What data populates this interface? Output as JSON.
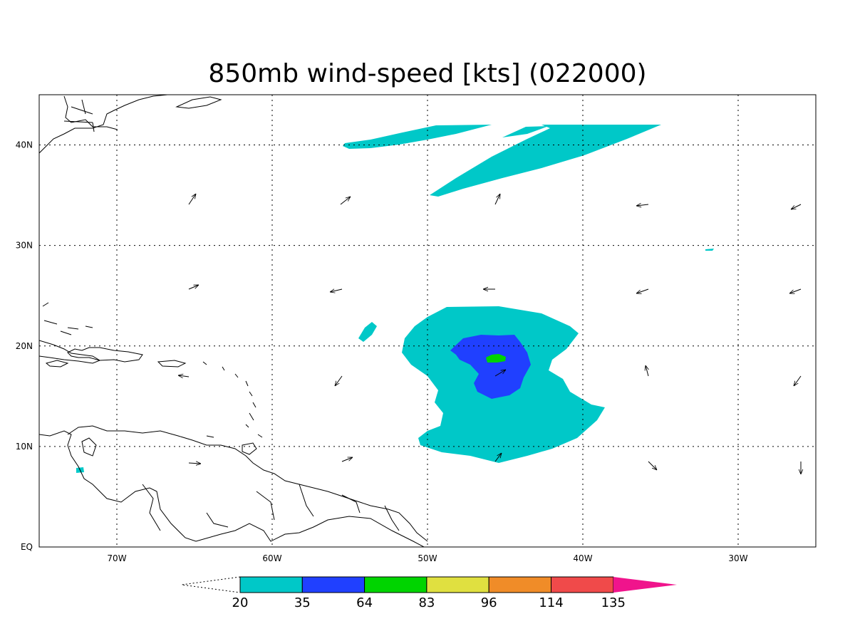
{
  "title": "850mb wind-speed [kts] (022000)",
  "map": {
    "lon_range": [
      -75,
      -25
    ],
    "lat_range": [
      0,
      45
    ],
    "lon_ticks": [
      "70W",
      "60W",
      "50W",
      "40W",
      "30W"
    ],
    "lat_ticks": [
      "EQ",
      "10N",
      "20N",
      "30N",
      "40N"
    ],
    "grid": "dotted",
    "shading_colors": {
      "20-35": "#00c8c8",
      "35-64": "#2040ff",
      "64-83": "#00d400",
      "83-96": "#e0e040",
      "96-114": "#f08c28",
      "114-135": "#f04a4a",
      "135+": "#f0148c"
    }
  },
  "colorbar": {
    "labels": [
      "20",
      "35",
      "64",
      "83",
      "96",
      "114",
      "135"
    ],
    "colors": [
      "#00c8c8",
      "#2040ff",
      "#00d400",
      "#e0e040",
      "#f08c28",
      "#f04a4a",
      "#f0148c"
    ]
  },
  "features": {
    "storm_center": {
      "lon": -45.5,
      "lat": 18.5,
      "max_band": "64-83"
    },
    "jet_streak": {
      "lon_range": [
        -50,
        -35
      ],
      "lat_range": [
        35,
        42
      ],
      "band": "20-35"
    }
  }
}
